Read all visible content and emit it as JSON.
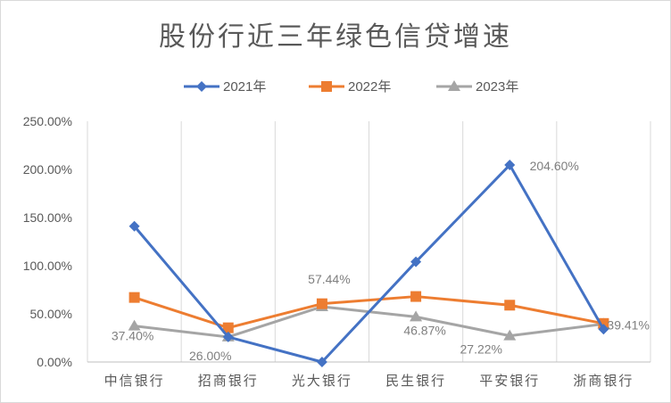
{
  "chart_data": {
    "type": "line",
    "title": "股份行近三年绿色信贷增速",
    "xlabel": "",
    "ylabel": "",
    "categories": [
      "中信银行",
      "招商银行",
      "光大银行",
      "民生银行",
      "平安银行",
      "浙商银行"
    ],
    "ylim": [
      0,
      250
    ],
    "yticks": [
      "0.00%",
      "50.00%",
      "100.00%",
      "150.00%",
      "200.00%",
      "250.00%"
    ],
    "grid": "vertical",
    "legend_position": "top",
    "series": [
      {
        "name": "2021年",
        "color": "#4472C4",
        "marker": "diamond",
        "values": [
          141,
          26,
          0,
          104,
          204.6,
          34
        ]
      },
      {
        "name": "2022年",
        "color": "#ED7D31",
        "marker": "square",
        "values": [
          67,
          35.5,
          60.5,
          68,
          59,
          40
        ]
      },
      {
        "name": "2023年",
        "color": "#A5A5A5",
        "marker": "triangle",
        "values": [
          37.4,
          26.0,
          57.44,
          46.87,
          27.22,
          39.41
        ]
      }
    ],
    "data_labels": [
      {
        "series": 2,
        "index": 0,
        "text": "37.40%"
      },
      {
        "series": 2,
        "index": 1,
        "text": "26.00%"
      },
      {
        "series": 2,
        "index": 2,
        "text": "57.44%"
      },
      {
        "series": 2,
        "index": 3,
        "text": "46.87%"
      },
      {
        "series": 0,
        "index": 4,
        "text": "204.60%"
      },
      {
        "series": 2,
        "index": 4,
        "text": "27.22%"
      },
      {
        "series": 2,
        "index": 5,
        "text": "39.41%"
      }
    ]
  }
}
